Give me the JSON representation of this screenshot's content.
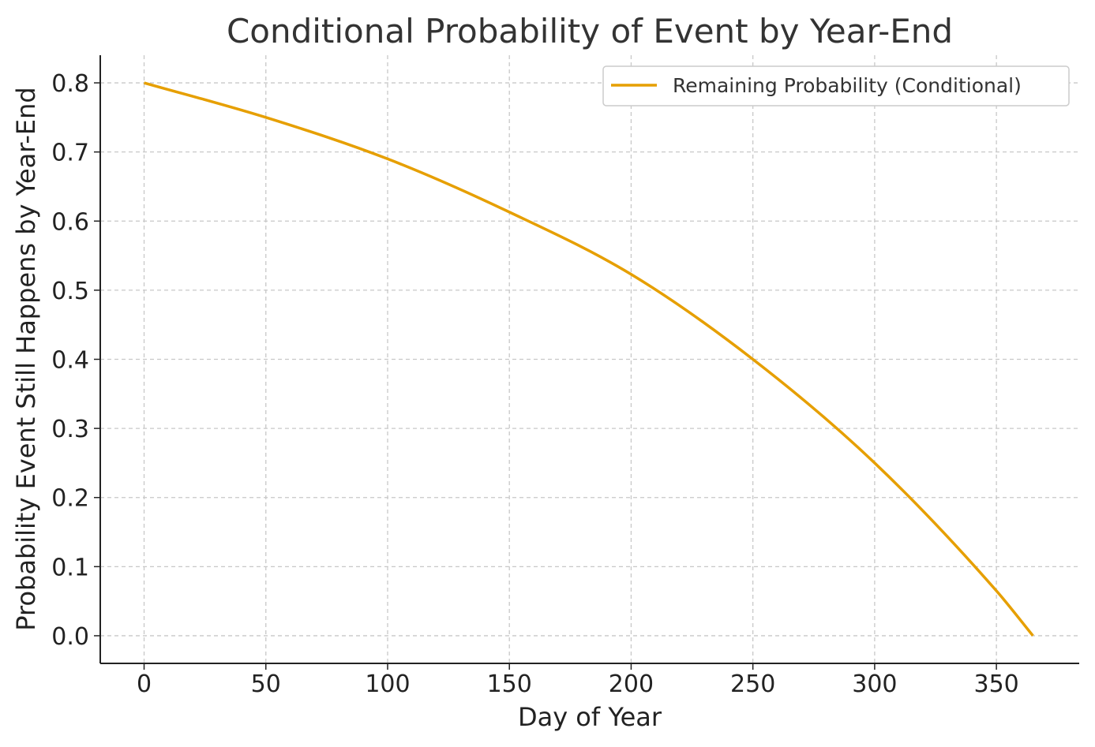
{
  "chart_data": {
    "type": "line",
    "title": "Conditional Probability of Event by Year-End",
    "xlabel": "Day of Year",
    "ylabel": "Probability Event Still Happens by Year-End",
    "xlim": [
      -18,
      384
    ],
    "ylim": [
      -0.04,
      0.84
    ],
    "xticks": [
      0,
      50,
      100,
      150,
      200,
      250,
      300,
      350
    ],
    "yticks": [
      0.0,
      0.1,
      0.2,
      0.3,
      0.4,
      0.5,
      0.6,
      0.7,
      0.8
    ],
    "xtick_labels": [
      "0",
      "50",
      "100",
      "150",
      "200",
      "250",
      "300",
      "350"
    ],
    "ytick_labels": [
      "0.0",
      "0.1",
      "0.2",
      "0.3",
      "0.4",
      "0.5",
      "0.6",
      "0.7",
      "0.8"
    ],
    "grid": true,
    "legend_position": "top-right",
    "series": [
      {
        "name": "Remaining Probability (Conditional)",
        "color": "#e69f00",
        "x": [
          0,
          50,
          100,
          150,
          200,
          250,
          300,
          350,
          365
        ],
        "values": [
          0.8,
          0.75,
          0.69,
          0.613,
          0.523,
          0.4,
          0.25,
          0.065,
          0.0
        ]
      }
    ]
  }
}
